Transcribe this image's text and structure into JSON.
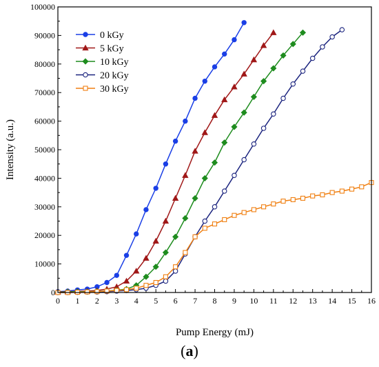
{
  "panel_label": {
    "open": "(",
    "letter": "a",
    "close": ")"
  },
  "chart_data": {
    "type": "line",
    "title": "",
    "xlabel": "Pump Energy (mJ)",
    "ylabel": "Intensity (a.u.)",
    "xlim": [
      0,
      16
    ],
    "ylim": [
      0,
      100000
    ],
    "xticks": [
      "0",
      "1",
      "2",
      "3",
      "4",
      "5",
      "6",
      "7",
      "8",
      "9",
      "10",
      "11",
      "12",
      "13",
      "14",
      "15",
      "16"
    ],
    "yticks": [
      "0",
      "10000",
      "20000",
      "30000",
      "40000",
      "50000",
      "60000",
      "70000",
      "80000",
      "90000",
      "100000"
    ],
    "grid": false,
    "legend_position": "top-left",
    "series": [
      {
        "name": "0 kGy",
        "color": "#1a3fe6",
        "marker": "circle-filled",
        "x": [
          0,
          0.5,
          1,
          1.5,
          2,
          2.5,
          3,
          3.5,
          4,
          4.5,
          5,
          5.5,
          6,
          6.5,
          7,
          7.5,
          8,
          8.5,
          9,
          9.5
        ],
        "y": [
          300,
          500,
          900,
          1200,
          2000,
          3500,
          6000,
          13000,
          20500,
          29000,
          36500,
          45000,
          53000,
          60000,
          68000,
          74000,
          79000,
          83500,
          88500,
          94500
        ]
      },
      {
        "name": "5 kGy",
        "color": "#a01818",
        "marker": "triangle-filled",
        "x": [
          0,
          0.5,
          1,
          1.5,
          2,
          2.5,
          3,
          3.5,
          4,
          4.5,
          5,
          5.5,
          6,
          6.5,
          7,
          7.5,
          8,
          8.5,
          9,
          9.5,
          10,
          10.5,
          11
        ],
        "y": [
          200,
          300,
          400,
          500,
          700,
          1200,
          2000,
          4000,
          7500,
          12000,
          18000,
          25000,
          33000,
          41000,
          49500,
          56000,
          62000,
          67500,
          72000,
          76500,
          81500,
          86500,
          91000
        ]
      },
      {
        "name": "10 kGy",
        "color": "#1e8c1e",
        "marker": "diamond-filled",
        "x": [
          0,
          0.5,
          1,
          1.5,
          2,
          2.5,
          3,
          3.5,
          4,
          4.5,
          5,
          5.5,
          6,
          6.5,
          7,
          7.5,
          8,
          8.5,
          9,
          9.5,
          10,
          10.5,
          11,
          11.5,
          12,
          12.5
        ],
        "y": [
          100,
          200,
          300,
          300,
          400,
          500,
          800,
          1200,
          2500,
          5500,
          9000,
          14000,
          19500,
          26000,
          33000,
          40000,
          45500,
          52500,
          58000,
          63000,
          68500,
          74000,
          78500,
          83000,
          87000,
          91000
        ]
      },
      {
        "name": "20 kGy",
        "color": "#1a237e",
        "marker": "circle-open",
        "x": [
          0,
          0.5,
          1,
          1.5,
          2,
          2.5,
          3,
          3.5,
          4,
          4.5,
          5,
          5.5,
          6,
          6.5,
          7,
          7.5,
          8,
          8.5,
          9,
          9.5,
          10,
          10.5,
          11,
          11.5,
          12,
          12.5,
          13,
          13.5,
          14,
          14.5
        ],
        "y": [
          0,
          0,
          100,
          200,
          200,
          300,
          500,
          700,
          1000,
          1500,
          2500,
          4000,
          7500,
          13500,
          19500,
          25000,
          30000,
          35500,
          41000,
          46500,
          52000,
          57500,
          62500,
          68000,
          73000,
          77500,
          82000,
          86000,
          89500,
          92000
        ]
      },
      {
        "name": "30 kGy",
        "color": "#f07f10",
        "marker": "square-open",
        "x": [
          0,
          0.5,
          1,
          1.5,
          2,
          2.5,
          3,
          3.5,
          4,
          4.5,
          5,
          5.5,
          6,
          6.5,
          7,
          7.5,
          8,
          8.5,
          9,
          9.5,
          10,
          10.5,
          11,
          11.5,
          12,
          12.5,
          13,
          13.5,
          14,
          14.5,
          15,
          15.5,
          16
        ],
        "y": [
          0,
          0,
          100,
          200,
          300,
          500,
          700,
          1000,
          1500,
          2500,
          3500,
          5500,
          9000,
          14000,
          19500,
          22500,
          24000,
          25500,
          27000,
          28000,
          29000,
          30000,
          31000,
          32000,
          32500,
          33000,
          33800,
          34200,
          35000,
          35500,
          36200,
          37000,
          38500
        ]
      }
    ]
  }
}
